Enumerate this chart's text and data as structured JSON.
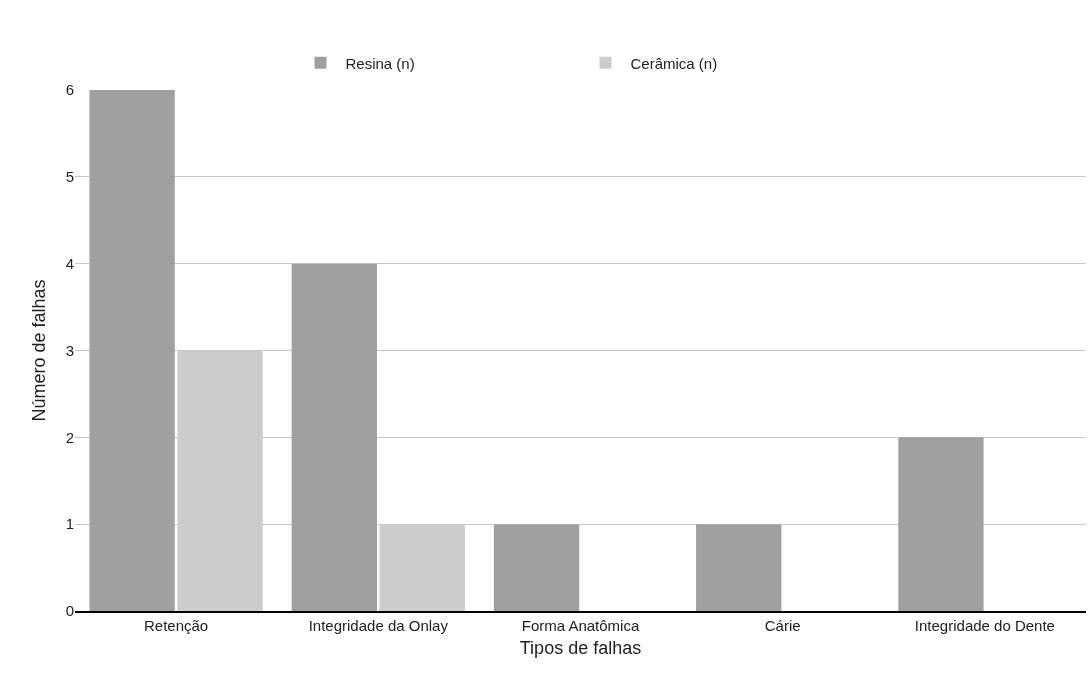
{
  "chart_data": {
    "type": "bar",
    "xlabel": "Tipos de falhas",
    "ylabel": "Número de falhas",
    "categories": [
      "Retenção",
      "Integridade da Onlay",
      "Forma Anatômica",
      "Cárie",
      "Integridade do Dente"
    ],
    "series": [
      {
        "name": "Resina (n)",
        "color": "#a0a0a0",
        "values": [
          6,
          4,
          1,
          1,
          2
        ]
      },
      {
        "name": "Cerâmica (n)",
        "color": "#cccccc",
        "values": [
          3,
          1,
          0,
          0,
          0
        ]
      }
    ],
    "ylim": [
      0,
      6
    ],
    "yticks": [
      0,
      1,
      2,
      3,
      4,
      5,
      6
    ],
    "grid": "y",
    "legend": "top"
  }
}
